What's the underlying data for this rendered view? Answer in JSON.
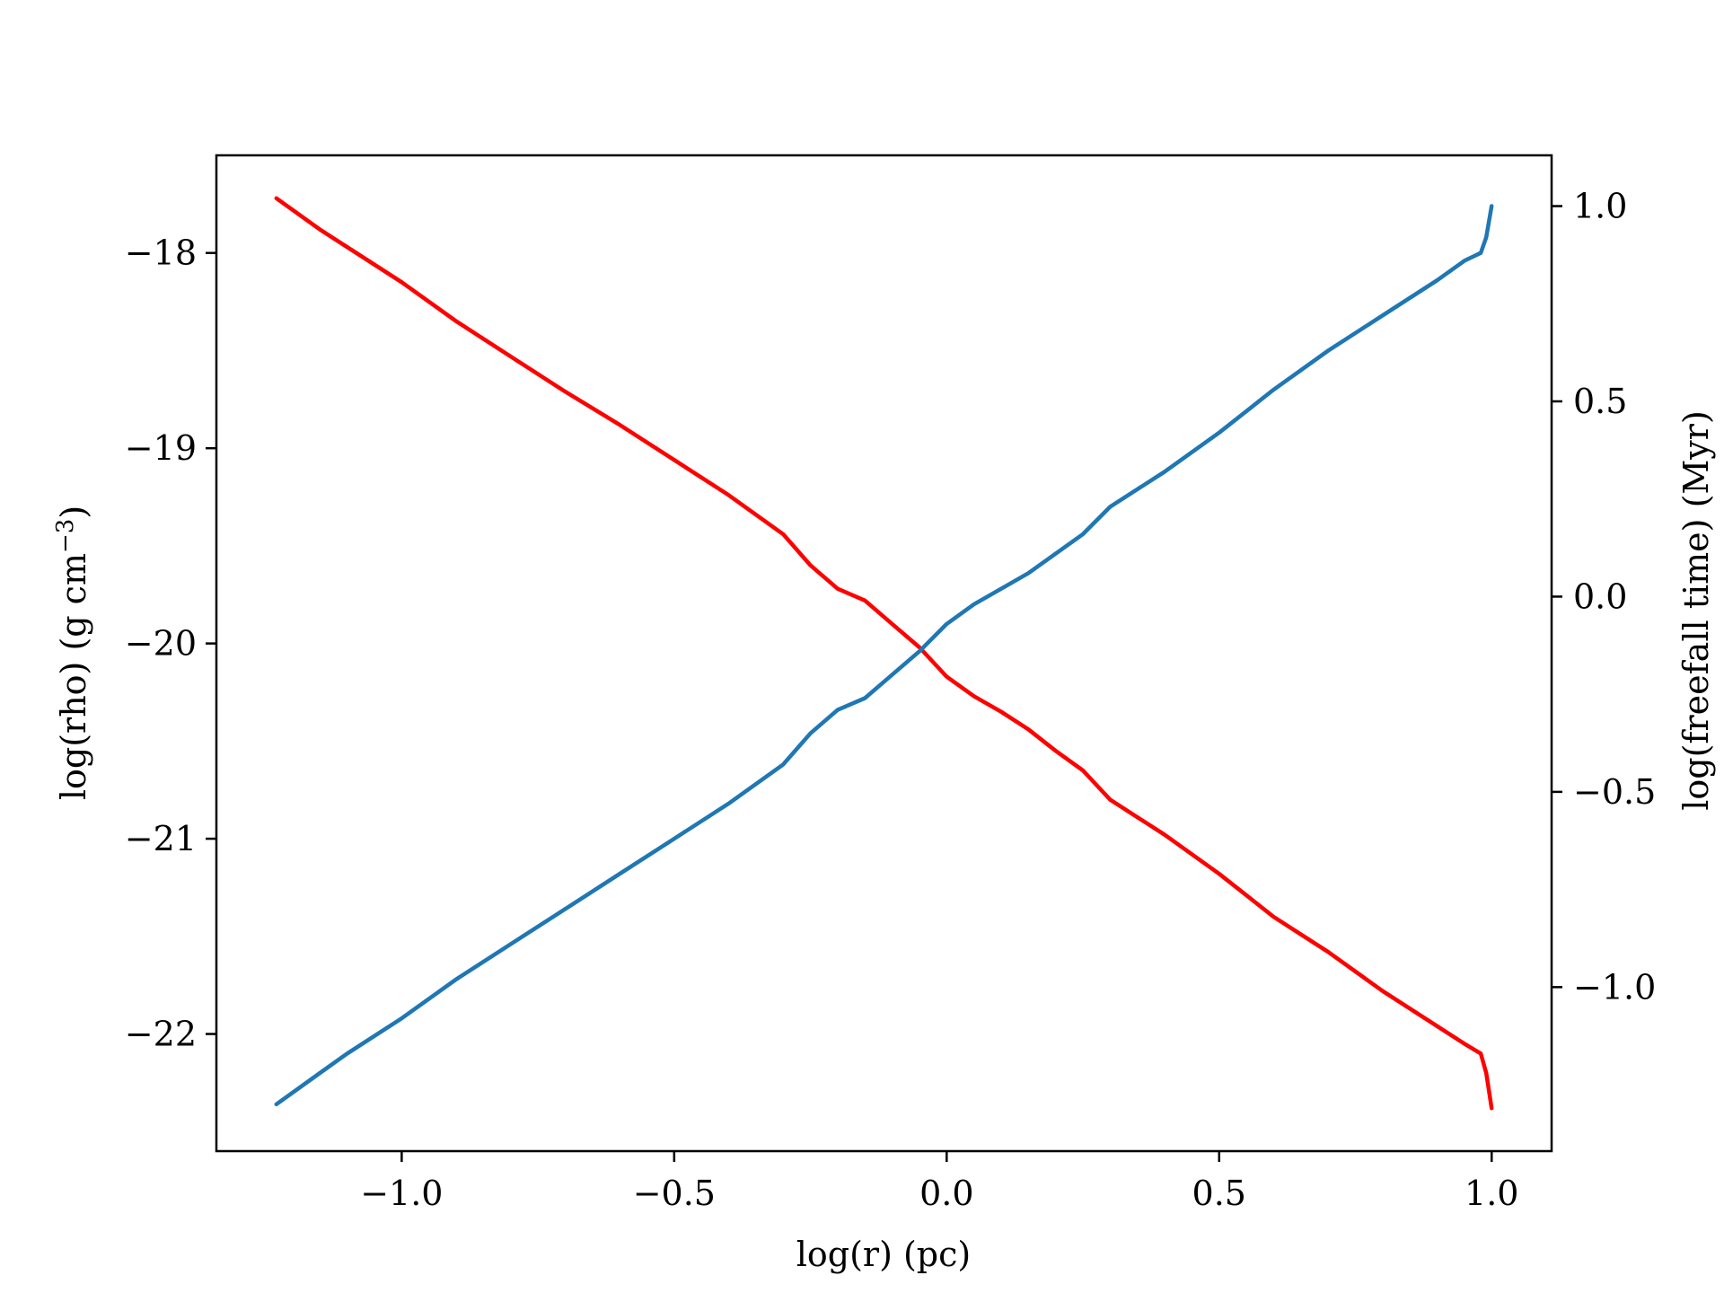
{
  "chart_data": {
    "type": "line",
    "title": "",
    "xlabel": "log(r) (pc)",
    "ylabel_left": "log(rho) (g cm",
    "ylabel_left_sup": "−3",
    "ylabel_left_close": ")",
    "ylabel_right": "log(freefall time) (Myr)",
    "xlim": [
      -1.34,
      1.11
    ],
    "ylim_left": [
      -22.6,
      -17.5
    ],
    "ylim_right": [
      -1.42,
      1.13
    ],
    "xticks": [
      -1.0,
      -0.5,
      0.0,
      0.5,
      1.0
    ],
    "xtick_labels": [
      "−1.0",
      "−0.5",
      "0.0",
      "0.5",
      "1.0"
    ],
    "yticks_left": [
      -22,
      -21,
      -20,
      -19,
      -18
    ],
    "ytick_labels_left": [
      "−22",
      "−21",
      "−20",
      "−19",
      "−18"
    ],
    "yticks_right": [
      -1.0,
      -0.5,
      0.0,
      0.5,
      1.0
    ],
    "ytick_labels_right": [
      "−1.0",
      "−0.5",
      "0.0",
      "0.5",
      "1.0"
    ],
    "grid": false,
    "legend": "none",
    "series": [
      {
        "axis": "left",
        "color": "#ff0000",
        "x": [
          -1.23,
          -1.15,
          -1.1,
          -1.0,
          -0.9,
          -0.8,
          -0.7,
          -0.6,
          -0.5,
          -0.4,
          -0.3,
          -0.25,
          -0.2,
          -0.15,
          -0.1,
          -0.05,
          0.0,
          0.05,
          0.1,
          0.15,
          0.2,
          0.25,
          0.3,
          0.4,
          0.5,
          0.6,
          0.7,
          0.8,
          0.9,
          0.95,
          0.98,
          0.99,
          1.0
        ],
        "y": [
          -17.72,
          -17.88,
          -17.97,
          -18.15,
          -18.35,
          -18.53,
          -18.71,
          -18.88,
          -19.06,
          -19.24,
          -19.44,
          -19.6,
          -19.72,
          -19.78,
          -19.9,
          -20.02,
          -20.17,
          -20.27,
          -20.35,
          -20.44,
          -20.55,
          -20.65,
          -20.8,
          -20.98,
          -21.18,
          -21.4,
          -21.58,
          -21.78,
          -21.96,
          -22.05,
          -22.1,
          -22.2,
          -22.38
        ]
      },
      {
        "axis": "right",
        "color": "#1f77b4",
        "x": [
          -1.23,
          -1.15,
          -1.1,
          -1.0,
          -0.9,
          -0.8,
          -0.7,
          -0.6,
          -0.5,
          -0.4,
          -0.3,
          -0.25,
          -0.2,
          -0.15,
          -0.1,
          -0.05,
          0.0,
          0.05,
          0.1,
          0.15,
          0.2,
          0.25,
          0.3,
          0.4,
          0.5,
          0.6,
          0.7,
          0.8,
          0.9,
          0.95,
          0.98,
          0.99,
          1.0
        ],
        "y": [
          -1.3,
          -1.22,
          -1.17,
          -1.08,
          -0.98,
          -0.89,
          -0.8,
          -0.71,
          -0.62,
          -0.53,
          -0.43,
          -0.35,
          -0.29,
          -0.26,
          -0.2,
          -0.14,
          -0.07,
          -0.02,
          0.02,
          0.06,
          0.11,
          0.16,
          0.23,
          0.32,
          0.42,
          0.53,
          0.63,
          0.72,
          0.81,
          0.86,
          0.88,
          0.92,
          1.0
        ]
      }
    ]
  }
}
